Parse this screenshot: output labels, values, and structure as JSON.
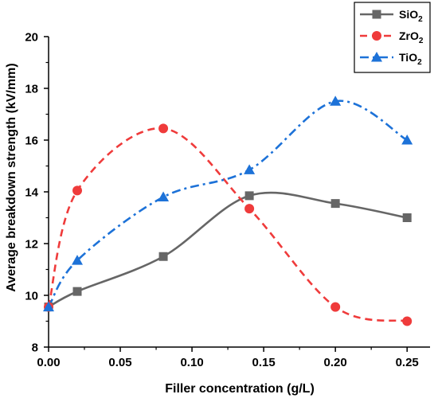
{
  "chart_data": {
    "type": "line",
    "title": "",
    "xlabel": "Filler concentration (g/L)",
    "ylabel": "Average breakdown strength (kV/mm)",
    "xlim": [
      0.0,
      0.266
    ],
    "ylim": [
      8,
      20
    ],
    "x_ticks": [
      "0.00",
      "0.05",
      "0.10",
      "0.15",
      "0.20",
      "0.25"
    ],
    "x_tick_values": [
      0.0,
      0.05,
      0.1,
      0.15,
      0.2,
      0.25
    ],
    "y_ticks": [
      "8",
      "10",
      "12",
      "14",
      "16",
      "18",
      "20"
    ],
    "y_tick_values": [
      8,
      10,
      12,
      14,
      16,
      18,
      20
    ],
    "grid": false,
    "legend_position": "top-right",
    "series": [
      {
        "name": "SiO2",
        "label_base": "SiO",
        "label_sub": "2",
        "color": "#666666",
        "marker": "square",
        "line_style": "solid",
        "x": [
          0.0,
          0.02,
          0.08,
          0.14,
          0.2,
          0.25
        ],
        "y": [
          9.55,
          10.15,
          11.5,
          13.85,
          13.55,
          13.0
        ]
      },
      {
        "name": "ZrO2",
        "label_base": "ZrO",
        "label_sub": "2",
        "color": "#ef3b3b",
        "marker": "circle",
        "line_style": "dashed",
        "x": [
          0.0,
          0.02,
          0.08,
          0.14,
          0.2,
          0.25
        ],
        "y": [
          9.55,
          14.05,
          16.45,
          13.35,
          9.55,
          9.0
        ]
      },
      {
        "name": "TiO2",
        "label_base": "TiO",
        "label_sub": "2",
        "color": "#1d72d8",
        "marker": "triangle",
        "line_style": "dashdot",
        "x": [
          0.0,
          0.02,
          0.08,
          0.14,
          0.2,
          0.25
        ],
        "y": [
          9.55,
          11.35,
          13.8,
          14.85,
          17.5,
          16.0
        ]
      }
    ]
  }
}
